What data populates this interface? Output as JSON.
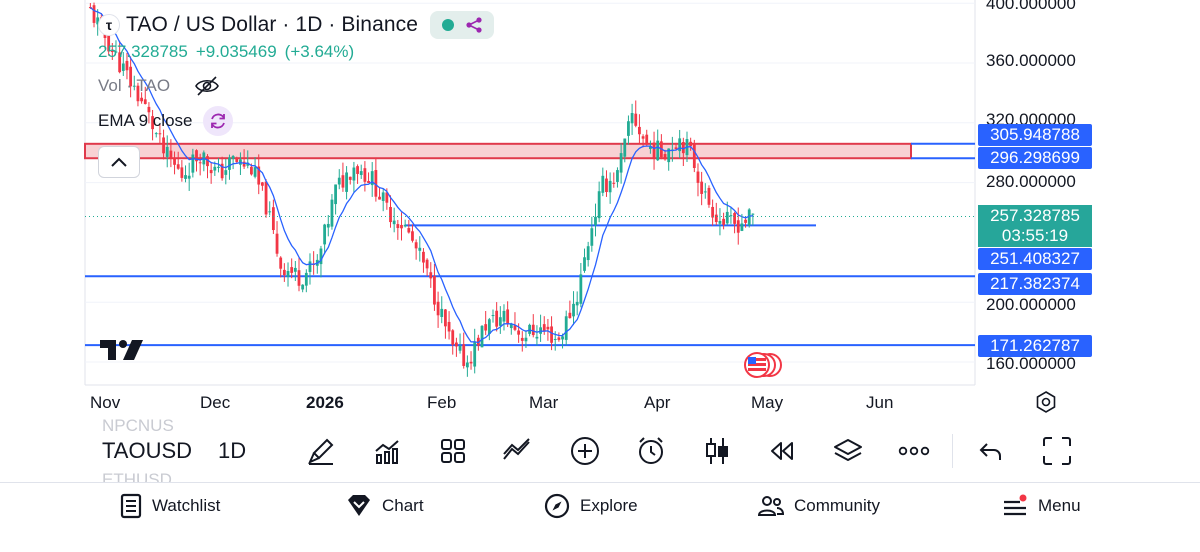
{
  "legend": {
    "logo_glyph": "τ",
    "title": "TAO / US Dollar · 1D · Binance",
    "price": "257.328785",
    "change": "+9.035469",
    "change_pct": "(+3.64%)",
    "vol_label": "Vol · TAO",
    "ema_label": "EMA 9 close"
  },
  "price_axis": {
    "labels": [
      "400.000000",
      "360.000000",
      "320.000000",
      "280.000000",
      "200.000000",
      "160.000000"
    ],
    "tags": [
      "305.948788",
      "296.298699",
      "251.408327",
      "217.382374",
      "171.262787"
    ],
    "last_price": "257.328785",
    "countdown": "03:55:19"
  },
  "time_axis": {
    "labels": [
      "Nov",
      "Dec",
      "2026",
      "Feb",
      "Mar",
      "Apr",
      "May",
      "Jun"
    ]
  },
  "toolbar": {
    "symbol": "TAOUSD",
    "interval": "1D",
    "ghost_above": "NPCNUS",
    "ghost_below": "ETHUSD"
  },
  "nav": {
    "watchlist": "Watchlist",
    "chart": "Chart",
    "explore": "Explore",
    "community": "Community",
    "menu": "Menu"
  },
  "colors": {
    "up": "#22ab94",
    "down": "#f23645",
    "ema": "#2962ff",
    "level_line": "#2962ff",
    "zone_fill": "#f7c9cd",
    "zone_border": "#e0394b",
    "tag_bg": "#2962ff",
    "last_price_bg": "#26a69a",
    "menu_dot": "#f23645"
  },
  "chart_data": {
    "type": "candlestick",
    "symbol": "TAO / US Dollar",
    "interval": "1D",
    "exchange": "Binance",
    "x_ticks": [
      "Nov",
      "Dec",
      "2026",
      "Feb",
      "Mar",
      "Apr",
      "May",
      "Jun"
    ],
    "y_ticks": [
      400,
      360,
      320,
      280,
      200,
      160
    ],
    "ylim": [
      150,
      400
    ],
    "last_price": 257.328785,
    "change": 9.035469,
    "change_pct": 3.64,
    "levels": [
      251.408327,
      217.382374,
      171.262787
    ],
    "resistance_zone": [
      296.298699,
      305.948788
    ],
    "indicators": [
      "Vol · TAO",
      "EMA 9 close"
    ],
    "close_path": [
      {
        "date": "2025-10-28",
        "close": 395
      },
      {
        "date": "2025-11-05",
        "close": 360
      },
      {
        "date": "2025-11-12",
        "close": 330
      },
      {
        "date": "2025-11-17",
        "close": 300
      },
      {
        "date": "2025-11-22",
        "close": 285
      },
      {
        "date": "2025-11-27",
        "close": 300
      },
      {
        "date": "2025-12-02",
        "close": 285
      },
      {
        "date": "2025-12-06",
        "close": 295
      },
      {
        "date": "2025-12-11",
        "close": 290
      },
      {
        "date": "2025-12-15",
        "close": 265
      },
      {
        "date": "2025-12-19",
        "close": 225
      },
      {
        "date": "2025-12-24",
        "close": 217
      },
      {
        "date": "2025-12-29",
        "close": 225
      },
      {
        "date": "2026-01-03",
        "close": 275
      },
      {
        "date": "2026-01-08",
        "close": 292
      },
      {
        "date": "2026-01-13",
        "close": 282
      },
      {
        "date": "2026-01-17",
        "close": 262
      },
      {
        "date": "2026-01-22",
        "close": 250
      },
      {
        "date": "2026-01-27",
        "close": 225
      },
      {
        "date": "2026-01-31",
        "close": 198
      },
      {
        "date": "2026-02-04",
        "close": 168
      },
      {
        "date": "2026-02-08",
        "close": 160
      },
      {
        "date": "2026-02-13",
        "close": 185
      },
      {
        "date": "2026-02-18",
        "close": 190
      },
      {
        "date": "2026-02-23",
        "close": 178
      },
      {
        "date": "2026-02-28",
        "close": 182
      },
      {
        "date": "2026-03-05",
        "close": 175
      },
      {
        "date": "2026-03-10",
        "close": 205
      },
      {
        "date": "2026-03-14",
        "close": 252
      },
      {
        "date": "2026-03-17",
        "close": 278
      },
      {
        "date": "2026-03-21",
        "close": 285
      },
      {
        "date": "2026-03-25",
        "close": 325
      },
      {
        "date": "2026-03-29",
        "close": 305
      },
      {
        "date": "2026-04-02",
        "close": 300
      },
      {
        "date": "2026-04-07",
        "close": 310
      },
      {
        "date": "2026-04-10",
        "close": 300
      },
      {
        "date": "2026-04-14",
        "close": 270
      },
      {
        "date": "2026-04-18",
        "close": 255
      },
      {
        "date": "2026-04-22",
        "close": 252
      },
      {
        "date": "2026-04-27",
        "close": 257
      }
    ]
  }
}
